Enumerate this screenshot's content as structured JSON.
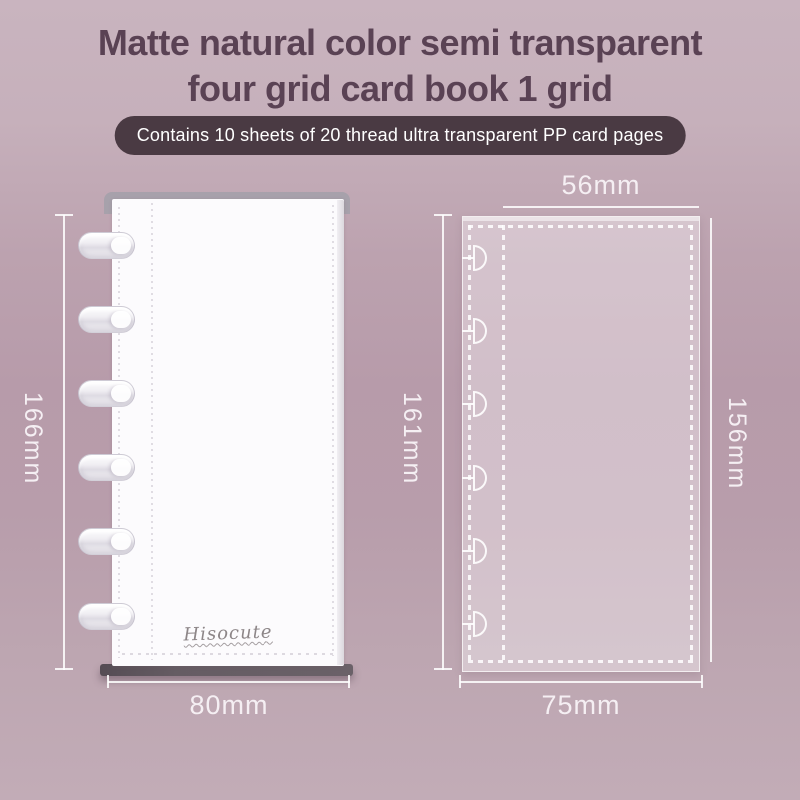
{
  "header": {
    "title_line1": "Matte natural color semi transparent",
    "title_line2": "four grid card book 1 grid",
    "badge": "Contains 10 sheets of 20 thread ultra transparent PP card pages"
  },
  "binder": {
    "brand_logo": "Hisocute",
    "ring_count": 6,
    "dimensions": {
      "height": "166mm",
      "width": "80mm"
    }
  },
  "card_page": {
    "notch_count": 6,
    "dimensions": {
      "pocket_width": "56mm",
      "left_height": "161mm",
      "right_height": "156mm",
      "width": "75mm"
    }
  },
  "colors": {
    "background_top": "#c8b3be",
    "background_main": "#b89cab",
    "title_text": "#5a4254",
    "badge_background": "#4a3a43",
    "badge_text": "#ffffff",
    "dimension_text": "#f5eff3",
    "binder_cover": "#fcfbfd",
    "binder_base": "#5f565d",
    "card_tint": "rgba(255,255,255,0.37)"
  }
}
